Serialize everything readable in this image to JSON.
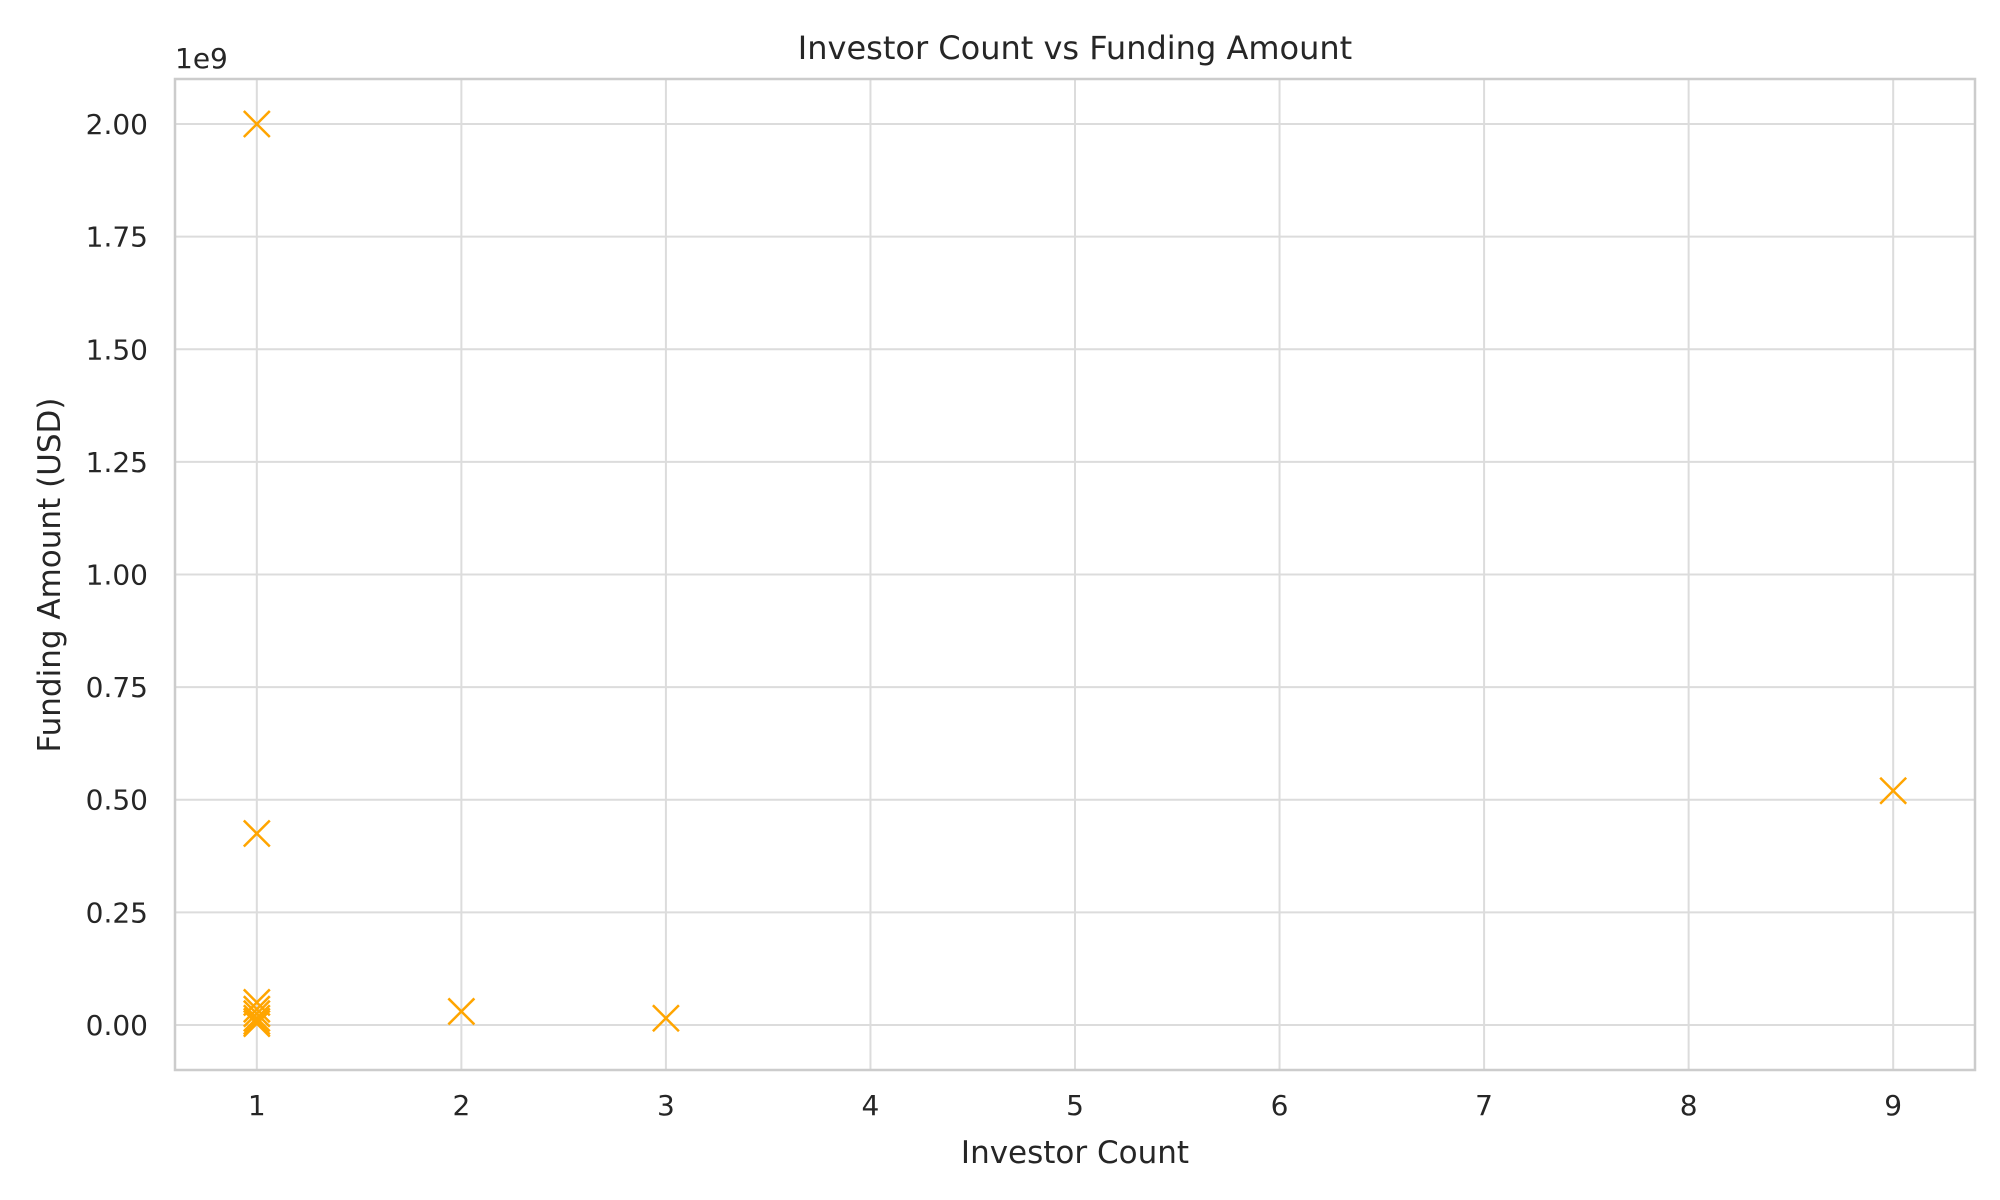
{
  "chart_data": {
    "type": "scatter",
    "title": "Investor Count vs Funding Amount",
    "xlabel": "Investor Count",
    "ylabel": "Funding Amount (USD)",
    "y_offset_label": "1e9",
    "xlim": [
      0.6,
      9.4
    ],
    "ylim": [
      -0.1,
      2.1
    ],
    "y_scale_factor": 1000000000,
    "xticks": [
      1,
      2,
      3,
      4,
      5,
      6,
      7,
      8,
      9
    ],
    "xtick_labels": [
      "1",
      "2",
      "3",
      "4",
      "5",
      "6",
      "7",
      "8",
      "9"
    ],
    "yticks": [
      0.0,
      0.25,
      0.5,
      0.75,
      1.0,
      1.25,
      1.5,
      1.75,
      2.0
    ],
    "ytick_labels": [
      "0.00",
      "0.25",
      "0.50",
      "0.75",
      "1.00",
      "1.25",
      "1.50",
      "1.75",
      "2.00"
    ],
    "grid": true,
    "marker": "x",
    "color": "#ffa500",
    "points": [
      {
        "x": 1,
        "y": 2.0
      },
      {
        "x": 1,
        "y": 0.425
      },
      {
        "x": 1,
        "y": 0.05
      },
      {
        "x": 1,
        "y": 0.035
      },
      {
        "x": 1,
        "y": 0.025
      },
      {
        "x": 1,
        "y": 0.015
      },
      {
        "x": 1,
        "y": 0.008
      },
      {
        "x": 1,
        "y": 0.003
      },
      {
        "x": 2,
        "y": 0.03
      },
      {
        "x": 3,
        "y": 0.015
      },
      {
        "x": 9,
        "y": 0.52
      }
    ]
  }
}
